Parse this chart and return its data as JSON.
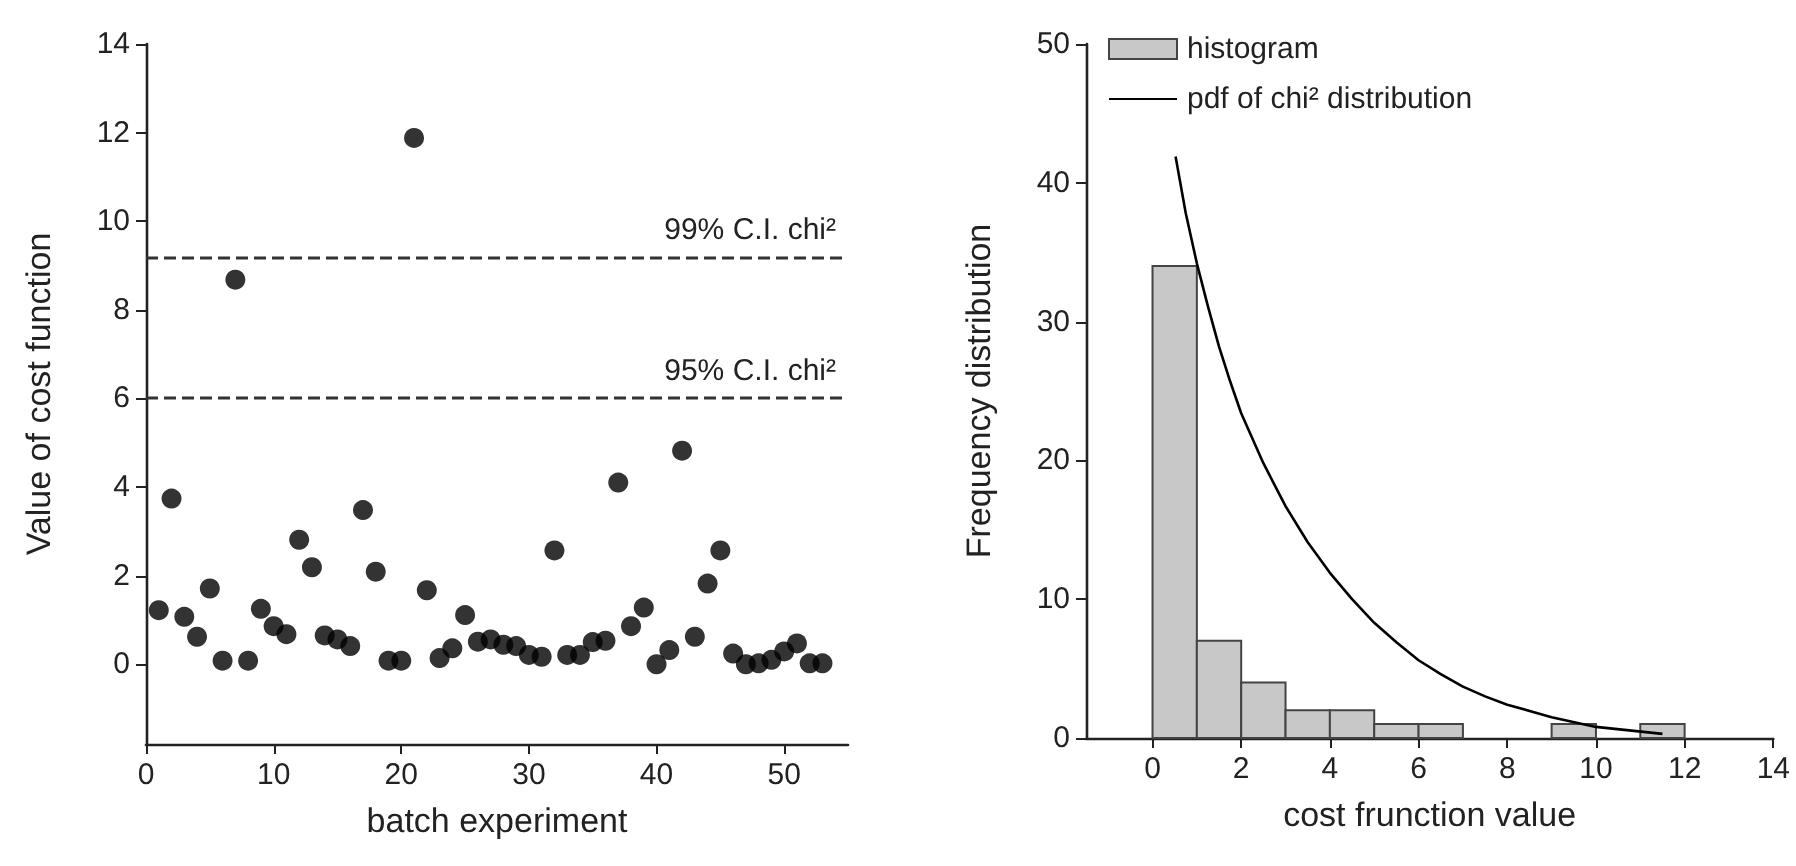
{
  "chart_data": [
    {
      "type": "scatter",
      "xlabel": "batch experiment",
      "ylabel": "Value of cost function",
      "color": "#000000",
      "marker": "circle",
      "x": [
        1,
        2,
        3,
        4,
        5,
        6,
        7,
        8,
        9,
        10,
        11,
        12,
        13,
        14,
        15,
        16,
        17,
        18,
        19,
        20,
        21,
        22,
        23,
        24,
        25,
        26,
        27,
        28,
        29,
        30,
        31,
        32,
        33,
        34,
        35,
        36,
        37,
        38,
        39,
        40,
        41,
        42,
        43,
        44,
        45,
        46,
        47,
        48,
        49,
        50,
        51,
        52,
        53
      ],
      "values": [
        1.22,
        3.74,
        1.07,
        0.62,
        1.71,
        0.08,
        8.68,
        0.08,
        1.25,
        0.86,
        0.68,
        2.81,
        2.19,
        0.65,
        0.56,
        0.41,
        3.48,
        2.09,
        0.08,
        0.08,
        11.88,
        1.67,
        0.14,
        0.36,
        1.11,
        0.51,
        0.56,
        0.44,
        0.41,
        0.21,
        0.17,
        2.57,
        0.21,
        0.21,
        0.5,
        0.53,
        4.1,
        0.86,
        1.28,
        0,
        0.32,
        4.82,
        0.62,
        1.82,
        2.57,
        0.24,
        0,
        0.02,
        0.1,
        0.29,
        0.47,
        0.02,
        0.02
      ],
      "xlim": [
        0,
        55
      ],
      "xticks": [
        0,
        10,
        20,
        30,
        40,
        50
      ],
      "ylim": [
        -1.8,
        14
      ],
      "yticks": [
        0,
        2,
        4,
        6,
        8,
        10,
        12,
        14
      ],
      "ref_lines": [
        {
          "axis": "y",
          "value": 9.2,
          "label": "99% C.I. chi²",
          "color": "#333333",
          "line_style": "dashed"
        },
        {
          "axis": "y",
          "value": 6,
          "label": "95% C.I. chi²",
          "color": "#333333",
          "line_style": "dashed"
        }
      ]
    },
    {
      "type": "histogram",
      "xlabel": "cost frunction value",
      "ylabel": "Frequency distribution",
      "legend": "top left",
      "xlim": [
        -1.5,
        14
      ],
      "xticks": [
        0,
        2,
        4,
        6,
        8,
        10,
        12,
        14
      ],
      "ylim": [
        0,
        50
      ],
      "yticks": [
        0,
        10,
        20,
        30,
        40,
        50
      ],
      "series": [
        {
          "name": "histogram",
          "color": "#c8c8c8",
          "bins": [
            0,
            1,
            2,
            3,
            4,
            5,
            6,
            7,
            8,
            9,
            10,
            11,
            12
          ],
          "values": [
            34,
            7,
            4,
            2,
            2,
            1,
            1,
            0,
            0,
            1,
            0,
            1
          ]
        },
        {
          "name": "pdf of chi² distribution",
          "type": "line",
          "color": "#000000",
          "marker": "none",
          "x": [
            0.52,
            0.75,
            1,
            1.25,
            1.5,
            1.75,
            2,
            2.5,
            3,
            3.5,
            4,
            4.5,
            5,
            5.5,
            6,
            6.5,
            7,
            7.5,
            8,
            9,
            10,
            11.5
          ],
          "values": [
            41.9,
            37.8,
            34.2,
            31.1,
            28.2,
            25.7,
            23.4,
            19.8,
            16.7,
            14.1,
            11.9,
            10,
            8.3,
            6.9,
            5.6,
            4.6,
            3.7,
            3,
            2.4,
            1.5,
            0.8,
            0.3
          ]
        }
      ]
    }
  ]
}
